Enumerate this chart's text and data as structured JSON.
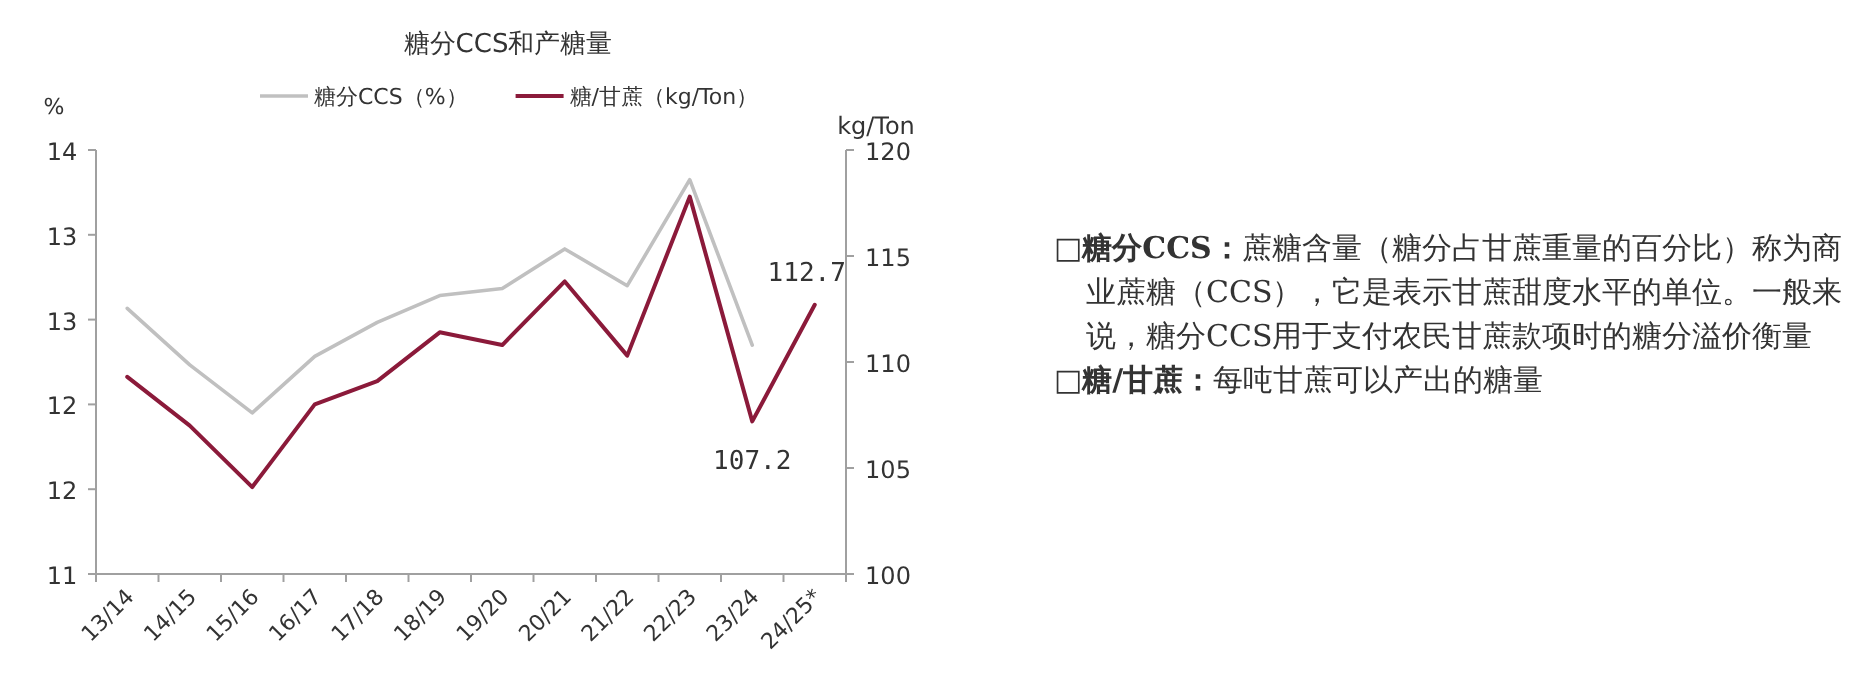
{
  "chart_data": {
    "type": "line",
    "title": "糖分CCS和产糖量",
    "ylabel": "%",
    "y2label": "kg/Ton",
    "categories": [
      "13/14",
      "14/15",
      "15/16",
      "16/17",
      "17/18",
      "18/19",
      "19/20",
      "20/21",
      "21/22",
      "22/23",
      "23/24",
      "24/25*"
    ],
    "series": [
      {
        "name": "糖分CCS（%）",
        "color": "#c0c0c0",
        "values": [
          12.88,
          12.48,
          12.14,
          12.54,
          12.78,
          12.97,
          13.02,
          13.3,
          13.04,
          13.79,
          12.62,
          null
        ]
      },
      {
        "name": "糖/甘蔗（kg/Ton）",
        "color": "#8b1a3a",
        "axis": "y2",
        "values": [
          109.3,
          107.0,
          104.1,
          108.0,
          109.1,
          111.4,
          110.8,
          113.8,
          110.3,
          117.8,
          107.2,
          112.7
        ],
        "value_labels": [
          null,
          null,
          null,
          null,
          null,
          null,
          null,
          null,
          null,
          null,
          "107.2",
          "112.7"
        ]
      }
    ],
    "ylim": [
      11,
      14
    ],
    "yticks": [
      11,
      {
        "value": 11.6,
        "label": "12"
      },
      {
        "value": 12.2,
        "label": "12"
      },
      {
        "value": 12.8,
        "label": "13"
      },
      {
        "value": 13.4,
        "label": "13"
      },
      14
    ],
    "y2lim": [
      100,
      120
    ],
    "y2ticks": [
      100,
      105,
      110,
      115,
      120
    ],
    "legend": "top",
    "grid": false,
    "marker": "none",
    "line_style": "solid",
    "annotations": [
      "**□糖分CCS：**蔗糖含量（糖分占甘蔗重量的百分比）称为商业蔗糖（CCS），它是表示甘蔗甜度水平的单位。一般来说，糖分CCS用于支付农民甘蔗款项时的糖分溢价衡量",
      "**□糖/甘蔗：**每吨甘蔗可以产出的糖量"
    ]
  }
}
